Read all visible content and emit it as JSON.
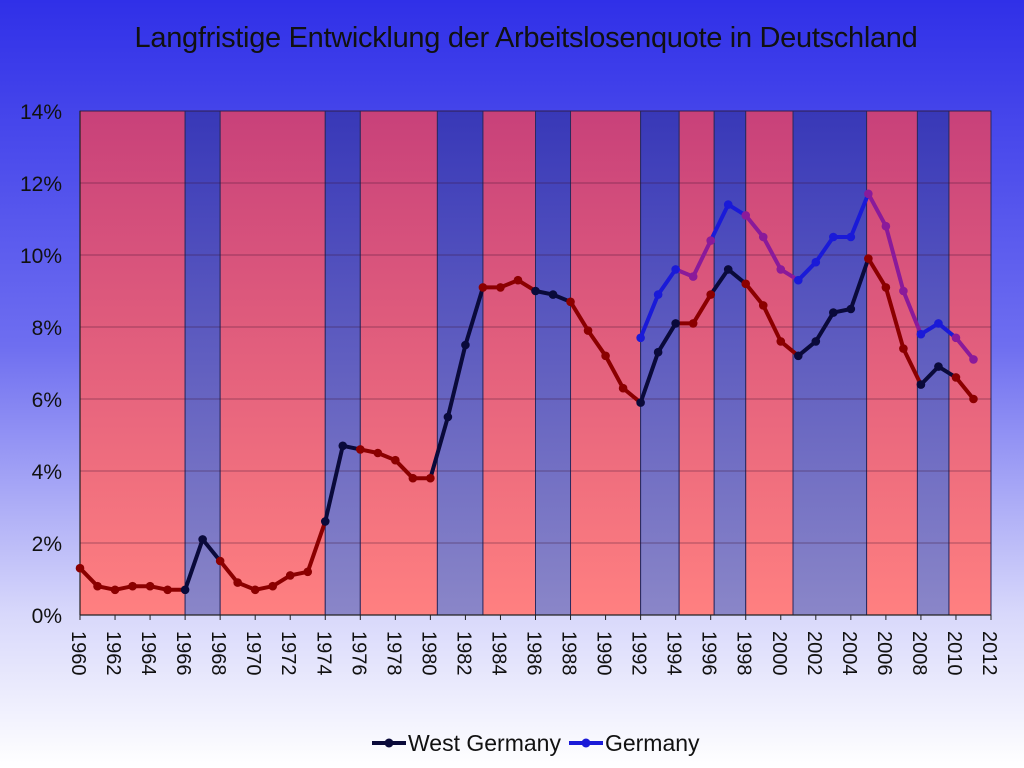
{
  "chart_data": {
    "type": "line",
    "title": "Langfristige Entwicklung der Arbeitslosenquote in Deutschland",
    "xlabel": "",
    "ylabel": "",
    "xlim": [
      1960,
      2012
    ],
    "ylim": [
      0,
      14
    ],
    "y_ticks": [
      "0%",
      "2%",
      "4%",
      "6%",
      "8%",
      "10%",
      "12%",
      "14%"
    ],
    "x_ticks": [
      "1960",
      "1962",
      "1964",
      "1966",
      "1968",
      "1970",
      "1972",
      "1974",
      "1976",
      "1978",
      "1980",
      "1982",
      "1984",
      "1986",
      "1988",
      "1990",
      "1992",
      "1994",
      "1996",
      "1998",
      "2000",
      "2002",
      "2004",
      "2006",
      "2008",
      "2010",
      "2012"
    ],
    "grid": true,
    "legend_position": "bottom",
    "series": [
      {
        "name": "West Germany",
        "color": "#0a0a3a",
        "x": [
          1960,
          1961,
          1962,
          1963,
          1964,
          1965,
          1966,
          1967,
          1968,
          1969,
          1970,
          1971,
          1972,
          1973,
          1974,
          1975,
          1976,
          1977,
          1978,
          1979,
          1980,
          1981,
          1982,
          1983,
          1984,
          1985,
          1986,
          1987,
          1988,
          1989,
          1990,
          1991,
          1992,
          1993,
          1994,
          1995,
          1996,
          1997,
          1998,
          1999,
          2000,
          2001,
          2002,
          2003,
          2004,
          2005,
          2006,
          2007,
          2008,
          2009,
          2010,
          2011
        ],
        "values": [
          1.3,
          0.8,
          0.7,
          0.8,
          0.8,
          0.7,
          0.7,
          2.1,
          1.5,
          0.9,
          0.7,
          0.8,
          1.1,
          1.2,
          2.6,
          4.7,
          4.6,
          4.5,
          4.3,
          3.8,
          3.8,
          5.5,
          7.5,
          9.1,
          9.1,
          9.3,
          9.0,
          8.9,
          8.7,
          7.9,
          7.2,
          6.3,
          5.9,
          7.3,
          8.1,
          8.1,
          8.9,
          9.6,
          9.2,
          8.6,
          7.6,
          7.2,
          7.6,
          8.4,
          8.5,
          9.9,
          9.1,
          7.4,
          6.4,
          6.9,
          6.6,
          6.0
        ]
      },
      {
        "name": "Germany",
        "color": "#1a1ad8",
        "x": [
          1992,
          1993,
          1994,
          1995,
          1996,
          1997,
          1998,
          1999,
          2000,
          2001,
          2002,
          2003,
          2004,
          2005,
          2006,
          2007,
          2008,
          2009,
          2010,
          2011
        ],
        "values": [
          7.7,
          8.9,
          9.6,
          9.4,
          10.4,
          11.4,
          11.1,
          10.5,
          9.6,
          9.3,
          9.8,
          10.5,
          10.5,
          11.7,
          10.8,
          9.0,
          7.8,
          8.1,
          7.7,
          7.1
        ]
      }
    ],
    "bands": [
      {
        "from": 1960,
        "to": 1966,
        "party": "red"
      },
      {
        "from": 1966,
        "to": 1968,
        "party": "blue"
      },
      {
        "from": 1968,
        "to": 1974,
        "party": "red"
      },
      {
        "from": 1974,
        "to": 1976,
        "party": "blue"
      },
      {
        "from": 1976,
        "to": 1980.4,
        "party": "red"
      },
      {
        "from": 1980.4,
        "to": 1983,
        "party": "blue"
      },
      {
        "from": 1983,
        "to": 1986,
        "party": "red"
      },
      {
        "from": 1986,
        "to": 1988,
        "party": "blue"
      },
      {
        "from": 1988,
        "to": 1992,
        "party": "red"
      },
      {
        "from": 1992,
        "to": 1994.2,
        "party": "blue"
      },
      {
        "from": 1994.2,
        "to": 1996.2,
        "party": "red"
      },
      {
        "from": 1996.2,
        "to": 1998,
        "party": "blue"
      },
      {
        "from": 1998,
        "to": 2000.7,
        "party": "red"
      },
      {
        "from": 2000.7,
        "to": 2004.9,
        "party": "blue"
      },
      {
        "from": 2004.9,
        "to": 2007.8,
        "party": "red"
      },
      {
        "from": 2007.8,
        "to": 2009.6,
        "party": "blue"
      },
      {
        "from": 2009.6,
        "to": 2012,
        "party": "red"
      }
    ],
    "colors": {
      "red_band_top": "#c8417a",
      "red_band_bottom": "#ff8080",
      "blue_band_top": "#3838b8",
      "blue_band_bottom": "#8a86c8",
      "line_over_red": "#8b0000",
      "germany_over_red": "#8a1a9a"
    }
  }
}
